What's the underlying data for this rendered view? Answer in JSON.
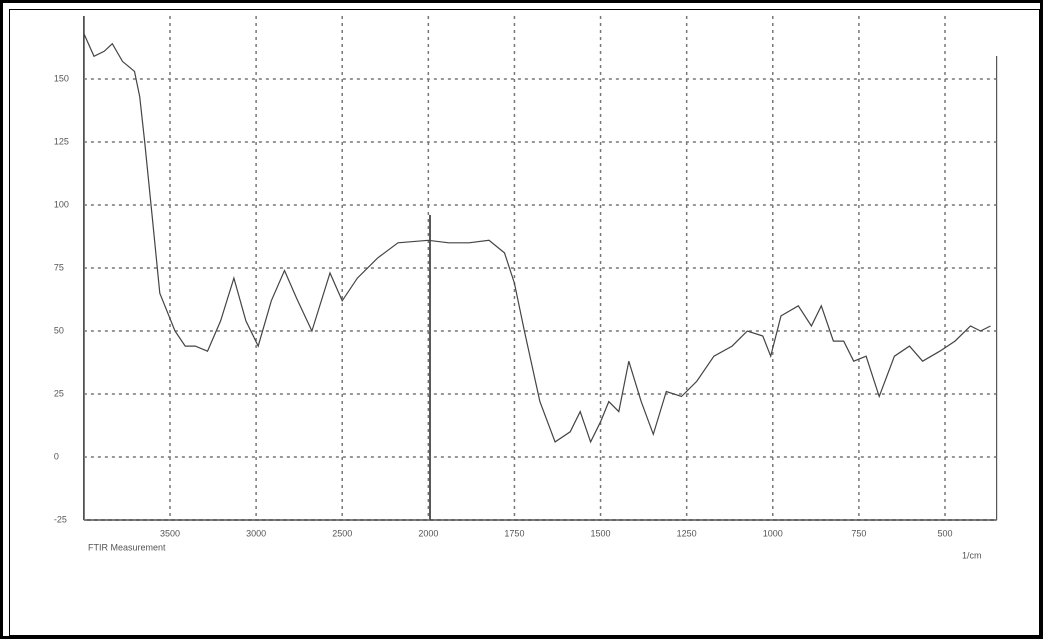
{
  "chart_data": {
    "type": "line",
    "x_unit_label": "1/cm",
    "footer_label": "FTIR Measurement",
    "xlim": [
      4000,
      350
    ],
    "xticks": [
      3500,
      3000,
      2500,
      2000,
      1750,
      1500,
      1250,
      1000,
      750,
      500
    ],
    "ylim": [
      -25,
      175
    ],
    "yticks": [
      -25,
      0,
      25,
      50,
      75,
      100,
      125,
      150
    ],
    "grid": true,
    "series": [
      {
        "color": "#444444",
        "x": [
          4000,
          3941,
          3882,
          3835,
          3776,
          3706,
          3676,
          3647,
          3600,
          3559,
          3471,
          3412,
          3353,
          3282,
          3206,
          3129,
          3059,
          2988,
          2912,
          2835,
          2765,
          2676,
          2571,
          2500,
          2412,
          2294,
          2176,
          2000,
          1941,
          1882,
          1824,
          1779,
          1750,
          1721,
          1676,
          1632,
          1588,
          1559,
          1529,
          1500,
          1476,
          1447,
          1418,
          1382,
          1347,
          1309,
          1265,
          1221,
          1171,
          1118,
          1074,
          1029,
          1006,
          976,
          926,
          888,
          859,
          824,
          794,
          765,
          729,
          691,
          647,
          603,
          565,
          515,
          471,
          426,
          397,
          368
        ],
        "values": [
          168,
          159,
          161,
          164,
          157,
          153,
          143,
          125,
          93,
          65,
          50,
          44,
          44,
          42,
          54,
          71,
          54,
          44,
          62,
          74,
          63,
          50,
          73,
          62,
          71,
          79,
          85,
          86,
          85,
          85,
          86,
          81,
          69,
          50,
          22,
          6,
          10,
          18,
          6,
          14,
          22,
          18,
          38,
          22,
          9,
          26,
          24,
          30,
          40,
          44,
          50,
          48,
          40,
          56,
          60,
          52,
          60,
          46,
          46,
          38,
          40,
          24,
          40,
          44,
          38,
          42,
          46,
          52,
          50,
          52
        ]
      }
    ]
  }
}
